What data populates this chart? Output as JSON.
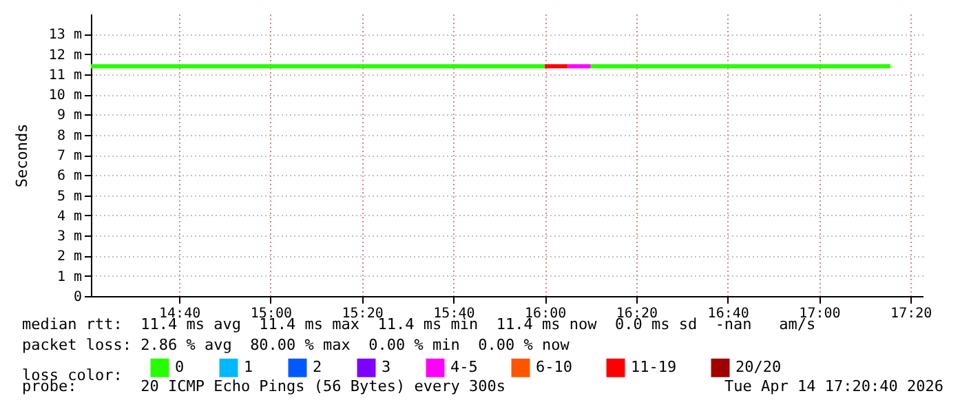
{
  "chart_data": {
    "type": "line",
    "ylabel": "Seconds",
    "legend_title": "loss color:",
    "legend": "bottom",
    "grid": true,
    "line_style": "solid",
    "marker": "none",
    "xlim": [
      14.345,
      17.378
    ],
    "ylim": [
      0,
      14
    ],
    "xticks": [
      {
        "value": 14.6667,
        "label": "14:40"
      },
      {
        "value": 15,
        "label": "15:00"
      },
      {
        "value": 15.3333,
        "label": "15:20"
      },
      {
        "value": 15.6667,
        "label": "15:40"
      },
      {
        "value": 16,
        "label": "16:00"
      },
      {
        "value": 16.3333,
        "label": "16:20"
      },
      {
        "value": 16.6667,
        "label": "16:40"
      },
      {
        "value": 17,
        "label": "17:00"
      },
      {
        "value": 17.3333,
        "label": "17:20"
      }
    ],
    "yticks": [
      0,
      {
        "value": 1,
        "label": "1 m"
      },
      {
        "value": 2,
        "label": "2 m"
      },
      {
        "value": 3,
        "label": "3 m"
      },
      {
        "value": 4,
        "label": "4 m"
      },
      {
        "value": 5,
        "label": "5 m"
      },
      {
        "value": 6,
        "label": "6 m"
      },
      {
        "value": 7,
        "label": "7 m"
      },
      {
        "value": 8,
        "label": "8 m"
      },
      {
        "value": 9,
        "label": "9 m"
      },
      {
        "value": 10,
        "label": "10 m"
      },
      {
        "value": 11,
        "label": "11 m"
      },
      {
        "value": 12,
        "label": "12 m"
      },
      {
        "value": 13,
        "label": "13 m"
      }
    ],
    "series": [
      {
        "name": "0",
        "color": "#26ff00",
        "x": [
          14.345,
          16.0,
          16.08,
          16.1667,
          17.26
        ],
        "values": [
          11.4,
          11.4,
          null,
          11.4,
          11.4
        ]
      },
      {
        "name": "1",
        "color": "#00b8ff"
      },
      {
        "name": "2",
        "color": "#0059ff"
      },
      {
        "name": "3",
        "color": "#7e00ff"
      },
      {
        "name": "4-5",
        "color": "#ff00ff",
        "x": [
          16.0833,
          16.1667
        ],
        "values": [
          11.4,
          11.4
        ]
      },
      {
        "name": "6-10",
        "color": "#ff5500"
      },
      {
        "name": "11-19",
        "color": "#ff0000",
        "x": [
          16.0,
          16.0833
        ],
        "values": [
          11.4,
          11.4
        ]
      },
      {
        "name": "20/20",
        "color": "#a10000"
      }
    ],
    "annotations": [
      "median rtt:  11.4 ms avg  11.4 ms max  11.4 ms min  11.4 ms now  0.0 ms sd  -nan   am/s",
      "packet loss: 2.86 % avg  80.00 % max  0.00 % min  0.00 % now",
      "probe:       20 ICMP Echo Pings (56 Bytes) every 300s",
      "Tue Apr 14 17:20:40 2026"
    ]
  }
}
